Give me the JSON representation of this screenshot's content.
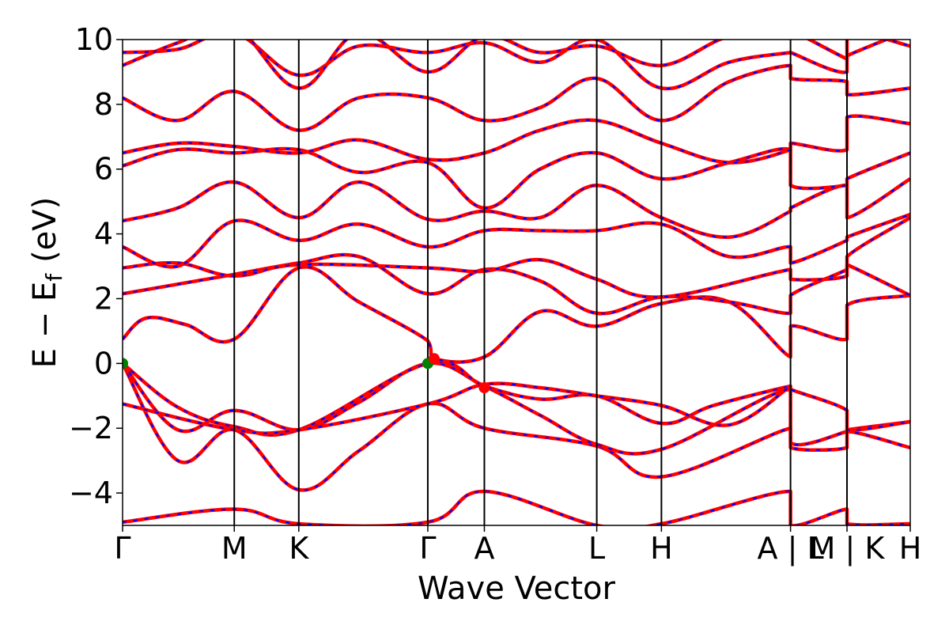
{
  "chart_data": {
    "type": "line",
    "title": "",
    "xlabel": "Wave Vector",
    "ylabel": "E − E",
    "ylabel_subscript": "f",
    "ylabel_unit": "(eV)",
    "ylim": [
      -5,
      10
    ],
    "xlim": [
      0,
      1
    ],
    "yticks": [
      -4,
      -2,
      0,
      2,
      4,
      6,
      8,
      10
    ],
    "ytick_labels": [
      "−4",
      "−2",
      "0",
      "2",
      "4",
      "6",
      "8",
      "10"
    ],
    "kpoints": [
      {
        "label": "Γ",
        "x": 0.0
      },
      {
        "label": "M",
        "x": 0.1418
      },
      {
        "label": "K",
        "x": 0.2237
      },
      {
        "label": "Γ",
        "x": 0.3875
      },
      {
        "label": "A",
        "x": 0.4593
      },
      {
        "label": "L",
        "x": 0.602
      },
      {
        "label": "H",
        "x": 0.6841
      },
      {
        "label": "A | L",
        "x": 0.848
      },
      {
        "label": "M | K",
        "x": 0.9197
      },
      {
        "label": "H",
        "x": 1.0
      }
    ],
    "series_style": [
      {
        "color": "#ff0000",
        "dash": "solid"
      },
      {
        "color": "#0000ff",
        "dash": "dashed"
      }
    ],
    "markers": [
      {
        "x": 0.0,
        "y": 0.0,
        "color": "#008000"
      },
      {
        "x": 0.3875,
        "y": 0.0,
        "color": "#008000"
      },
      {
        "x": 0.3955,
        "y": 0.15,
        "color": "#ff0000"
      },
      {
        "x": 0.4593,
        "y": -0.75,
        "color": "#ff0000"
      }
    ],
    "bands": [
      {
        "x": [
          0,
          0.1418,
          0.2237,
          0.3875,
          0.4593,
          0.602,
          0.6841,
          0.848,
          0.848,
          0.9197,
          0.9197,
          1.0
        ],
        "y": [
          -4.9,
          -4.5,
          -4.95,
          -4.9,
          -3.95,
          -5.0,
          -4.95,
          -3.95,
          -5.0,
          -4.5,
          -4.95,
          -4.95
        ]
      },
      {
        "x": [
          0,
          0.07,
          0.1418,
          0.2237,
          0.3,
          0.3875,
          0.4593,
          0.602,
          0.6841,
          0.848,
          0.848,
          0.9197,
          0.9197,
          1.0
        ],
        "y": [
          0,
          -3.0,
          -2.05,
          -3.9,
          -2.7,
          -1.25,
          -2.0,
          -2.55,
          -3.5,
          -2.0,
          -2.6,
          -2.6,
          -2.1,
          -2.6
        ]
      },
      {
        "x": [
          0,
          0.07,
          0.1418,
          0.2237,
          0.3,
          0.3875,
          0.4593,
          0.53,
          0.602,
          0.6841,
          0.848,
          0.848,
          0.9197,
          0.9197,
          1.0
        ],
        "y": [
          0,
          -2.05,
          -1.45,
          -2.05,
          -1.2,
          0.0,
          -0.7,
          -1.6,
          -2.5,
          -2.65,
          -0.8,
          -2.45,
          -2.1,
          -2.05,
          -1.8
        ]
      },
      {
        "x": [
          0,
          0.07,
          0.1418,
          0.2237,
          0.3875,
          0.4593,
          0.53,
          0.602,
          0.6841,
          0.75,
          0.848,
          0.848,
          0.9197,
          0.9197,
          1.0
        ],
        "y": [
          0,
          -1.35,
          -1.95,
          -2.05,
          0.0,
          -0.7,
          -1.1,
          -1.0,
          -1.85,
          -1.3,
          -0.7,
          -0.8,
          -1.45,
          -2.05,
          -1.8
        ]
      },
      {
        "x": [
          0,
          0.1418,
          0.2237,
          0.3875,
          0.4593,
          0.53,
          0.602,
          0.6841,
          0.77,
          0.848
        ],
        "y": [
          -1.25,
          -2.05,
          -2.05,
          -1.25,
          -0.65,
          -0.75,
          -1.0,
          -1.3,
          -1.9,
          -0.7
        ]
      },
      {
        "x": [
          0,
          0.03,
          0.08,
          0.1418,
          0.2237,
          0.3,
          0.3875,
          0.3955,
          0.4593,
          0.53,
          0.602,
          0.6841,
          0.77,
          0.848,
          0.848,
          0.9197,
          0.9197,
          1.0
        ],
        "y": [
          0.75,
          1.4,
          1.2,
          0.75,
          2.95,
          1.9,
          0.7,
          0.15,
          0.2,
          1.6,
          1.15,
          1.85,
          1.9,
          0.2,
          1.15,
          0.75,
          1.8,
          2.1
        ]
      },
      {
        "x": [
          0,
          0.1418,
          0.2237,
          0.3,
          0.3875,
          0.4593,
          0.53,
          0.602,
          0.6841,
          0.77,
          0.848,
          0.848,
          0.9197,
          0.9197,
          1.0
        ],
        "y": [
          2.15,
          2.75,
          3.1,
          3.3,
          2.15,
          2.9,
          2.55,
          1.55,
          2.05,
          1.9,
          1.55,
          2.1,
          2.9,
          3.05,
          2.1
        ]
      },
      {
        "x": [
          0,
          0.07,
          0.1418,
          0.2237,
          0.3875,
          0.4593,
          0.53,
          0.602,
          0.6841,
          0.848,
          0.848,
          0.9197,
          0.9197,
          1.0
        ],
        "y": [
          2.95,
          3.1,
          2.7,
          3.05,
          2.95,
          2.85,
          3.2,
          2.6,
          2.05,
          2.9,
          2.6,
          2.7,
          3.3,
          4.5
        ]
      },
      {
        "x": [
          0,
          0.07,
          0.1418,
          0.2237,
          0.3,
          0.3875,
          0.4593,
          0.53,
          0.602,
          0.6841,
          0.77,
          0.848,
          0.848,
          0.9197,
          0.9197,
          1.0
        ],
        "y": [
          3.6,
          3.0,
          4.4,
          3.8,
          4.3,
          3.6,
          4.1,
          4.1,
          4.1,
          4.3,
          3.3,
          3.6,
          3.1,
          3.8,
          3.9,
          4.6
        ]
      },
      {
        "x": [
          0,
          0.07,
          0.1418,
          0.2237,
          0.3,
          0.3875,
          0.4593,
          0.53,
          0.602,
          0.6841,
          0.77,
          0.848,
          0.848,
          0.9197,
          0.9197,
          1.0
        ],
        "y": [
          4.4,
          4.8,
          5.6,
          4.5,
          5.6,
          4.45,
          4.7,
          4.5,
          5.5,
          4.5,
          3.9,
          4.7,
          4.8,
          5.5,
          4.5,
          5.7
        ]
      },
      {
        "x": [
          0,
          0.07,
          0.1418,
          0.2237,
          0.3,
          0.3875,
          0.4593,
          0.53,
          0.602,
          0.6841,
          0.77,
          0.848,
          0.848,
          0.9197,
          0.9197,
          1.0
        ],
        "y": [
          6.1,
          6.6,
          6.5,
          6.6,
          5.9,
          6.2,
          4.8,
          6.0,
          6.5,
          5.7,
          6.2,
          6.6,
          5.5,
          5.5,
          5.7,
          6.5
        ]
      },
      {
        "x": [
          0,
          0.07,
          0.1418,
          0.2237,
          0.3,
          0.3875,
          0.4593,
          0.53,
          0.602,
          0.6841,
          0.77,
          0.848,
          0.848,
          0.9197,
          0.9197,
          1.0
        ],
        "y": [
          6.5,
          6.8,
          6.7,
          6.5,
          6.9,
          6.3,
          6.5,
          7.2,
          7.5,
          6.8,
          6.2,
          6.6,
          6.8,
          6.6,
          7.6,
          7.4
        ]
      },
      {
        "x": [
          0,
          0.07,
          0.1418,
          0.2237,
          0.3,
          0.3875,
          0.4593,
          0.53,
          0.602,
          0.6841,
          0.77,
          0.848,
          0.848,
          0.9197,
          0.9197,
          1.0
        ],
        "y": [
          8.2,
          7.5,
          8.4,
          7.2,
          8.2,
          8.2,
          7.5,
          7.9,
          8.8,
          7.5,
          8.7,
          9.2,
          8.8,
          8.7,
          8.3,
          8.5
        ]
      },
      {
        "x": [
          0,
          0.07,
          0.1418,
          0.2237,
          0.3,
          0.3875,
          0.4593,
          0.53,
          0.602,
          0.6841,
          0.77,
          0.848,
          0.848,
          0.9197,
          0.9197,
          1.0
        ],
        "y": [
          9.6,
          9.7,
          10.2,
          8.9,
          9.8,
          9.6,
          9.9,
          9.3,
          10.0,
          8.5,
          9.3,
          9.6,
          9.6,
          9.0,
          10.2,
          9.8
        ]
      },
      {
        "x": [
          0,
          0.07,
          0.1418,
          0.2237,
          0.3,
          0.3875,
          0.4593,
          0.53,
          0.602,
          0.6841,
          0.77,
          0.848,
          0.848,
          0.9197,
          0.9197,
          1.0
        ],
        "y": [
          9.2,
          9.9,
          10.4,
          8.5,
          10.2,
          9.0,
          10.1,
          9.6,
          9.8,
          9.2,
          10.1,
          10.2,
          10.3,
          9.4,
          9.5,
          10.3
        ]
      }
    ]
  }
}
